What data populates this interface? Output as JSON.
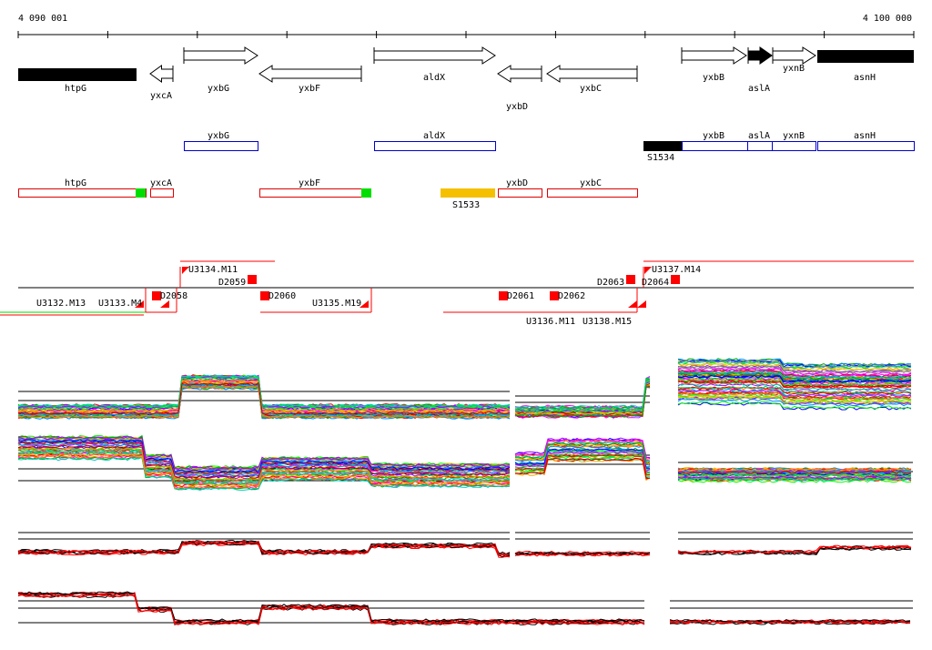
{
  "ruler": {
    "start_label": "4 090 001",
    "end_label": "4 100 000"
  },
  "genes": [
    {
      "name": "htpG",
      "strand": "bar",
      "filled": true
    },
    {
      "name": "yxcA",
      "strand": "-",
      "filled": false
    },
    {
      "name": "yxbG",
      "strand": "+",
      "filled": false
    },
    {
      "name": "yxbF",
      "strand": "-",
      "filled": false
    },
    {
      "name": "aldX",
      "strand": "+",
      "filled": false
    },
    {
      "name": "yxbD",
      "strand": "-",
      "filled": false
    },
    {
      "name": "yxbC",
      "strand": "-",
      "filled": false
    },
    {
      "name": "yxbB",
      "strand": "+",
      "filled": false
    },
    {
      "name": "aslA",
      "strand": "+",
      "filled": true
    },
    {
      "name": "yxnB",
      "strand": "+",
      "filled": false
    },
    {
      "name": "asnH",
      "strand": "bar",
      "filled": true
    }
  ],
  "operons_plus": {
    "items": [
      "yxbG",
      "aldX",
      "yxbB",
      "aslA",
      "yxnB",
      "asnH"
    ],
    "promoter": "S1534"
  },
  "operons_minus": {
    "items": [
      "htpG",
      "yxcA",
      "yxbF",
      "yxbD",
      "yxbC"
    ],
    "promoter": "S1533"
  },
  "segments": {
    "up": [
      "U3134.M11",
      "U3137.M14"
    ],
    "down": [
      "U3132.M13",
      "U3133.M4",
      "U3135.M19",
      "U3136.M11",
      "U3138.M15"
    ],
    "breakpoints": [
      "D2058",
      "D2059",
      "D2060",
      "D2061",
      "D2062",
      "D2063",
      "D2064"
    ]
  },
  "colors": {
    "operon_plus": "#0000cc",
    "operon_minus": "#dd0000",
    "terminator": "#00dd00",
    "promoter_s1533": "#f5c000",
    "segment": "#ff0000"
  }
}
